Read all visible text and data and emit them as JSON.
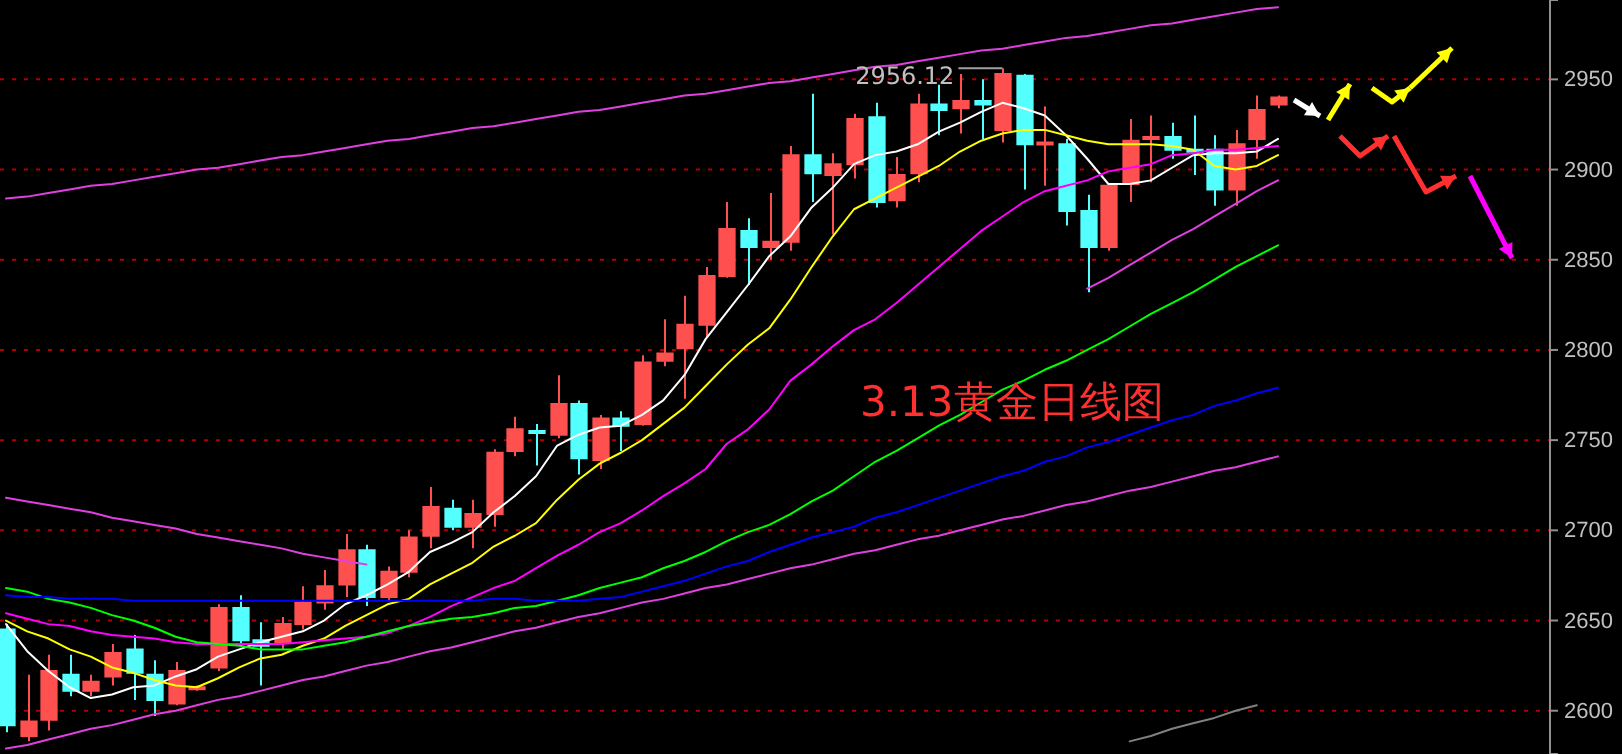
{
  "chart_data": {
    "type": "candlestick",
    "title": "3.13黄金日线图",
    "categories": [
      null,
      null,
      null,
      null,
      null,
      null,
      null,
      null,
      null,
      null,
      null,
      null,
      null,
      null,
      null,
      null,
      null,
      null,
      null,
      null,
      null,
      null,
      null,
      null,
      null,
      null,
      null,
      null,
      null,
      null,
      null,
      null,
      null,
      null,
      null,
      null,
      null,
      null,
      null,
      null,
      null,
      null,
      null,
      null,
      null,
      null,
      null,
      null,
      null,
      null,
      null,
      null,
      null,
      null,
      null,
      null,
      null,
      null,
      null,
      null,
      null
    ],
    "ohlc": [
      [
        2645,
        2648,
        2588,
        2592
      ],
      [
        2586,
        2620,
        2583,
        2594
      ],
      [
        2595,
        2631,
        2589,
        2622
      ],
      [
        2620,
        2631,
        2608,
        2611
      ],
      [
        2611,
        2620,
        2608,
        2616
      ],
      [
        2619,
        2637,
        2614,
        2632
      ],
      [
        2634,
        2642,
        2606,
        2621
      ],
      [
        2620,
        2628,
        2597,
        2606
      ],
      [
        2604,
        2627,
        2603,
        2622
      ],
      [
        2612,
        2614,
        2611,
        2613
      ],
      [
        2624,
        2659,
        2622,
        2657
      ],
      [
        2657,
        2664,
        2636,
        2639
      ],
      [
        2639,
        2649,
        2614,
        2636
      ],
      [
        2638,
        2652,
        2634,
        2648
      ],
      [
        2648,
        2669,
        2645,
        2660
      ],
      [
        2660,
        2678,
        2656,
        2669
      ],
      [
        2670,
        2698,
        2663,
        2689
      ],
      [
        2689,
        2692,
        2658,
        2663
      ],
      [
        2663,
        2680,
        2661,
        2677
      ],
      [
        2677,
        2700,
        2674,
        2696
      ],
      [
        2697,
        2724,
        2690,
        2713
      ],
      [
        2712,
        2717,
        2700,
        2702
      ],
      [
        2702,
        2717,
        2690,
        2709
      ],
      [
        2709,
        2745,
        2702,
        2743
      ],
      [
        2744,
        2763,
        2741,
        2756
      ],
      [
        2755,
        2759,
        2736,
        2754
      ],
      [
        2753,
        2786,
        2751,
        2770
      ],
      [
        2770,
        2772,
        2731,
        2740
      ],
      [
        2739,
        2764,
        2734,
        2762
      ],
      [
        2762,
        2766,
        2744,
        2758
      ],
      [
        2759,
        2797,
        2758,
        2793
      ],
      [
        2794,
        2817,
        2791,
        2798
      ],
      [
        2801,
        2830,
        2773,
        2814
      ],
      [
        2814,
        2846,
        2807,
        2841
      ],
      [
        2841,
        2882,
        2840,
        2867
      ],
      [
        2866,
        2873,
        2836,
        2857
      ],
      [
        2857,
        2887,
        2850,
        2860
      ],
      [
        2860,
        2913,
        2855,
        2908
      ],
      [
        2908,
        2942,
        2882,
        2898
      ],
      [
        2897,
        2909,
        2864,
        2903
      ],
      [
        2903,
        2931,
        2895,
        2928
      ],
      [
        2929,
        2937,
        2879,
        2882
      ],
      [
        2883,
        2907,
        2879,
        2897
      ],
      [
        2898,
        2942,
        2893,
        2936
      ],
      [
        2936,
        2947,
        2919,
        2933
      ],
      [
        2934,
        2953,
        2920,
        2938
      ],
      [
        2938,
        2950,
        2917,
        2936
      ],
      [
        2922,
        2956.12,
        2915,
        2953
      ],
      [
        2952,
        2953,
        2889,
        2914
      ],
      [
        2914,
        2935,
        2891,
        2915
      ],
      [
        2914,
        2917,
        2869,
        2877
      ],
      [
        2877,
        2886,
        2832,
        2857
      ],
      [
        2857,
        2892,
        2855,
        2891
      ],
      [
        2892,
        2928,
        2882,
        2916
      ],
      [
        2917,
        2930,
        2893,
        2918
      ],
      [
        2918,
        2926,
        2906,
        2911
      ],
      [
        2911,
        2930,
        2897,
        2910
      ],
      [
        2911,
        2919,
        2880,
        2889
      ],
      [
        2889,
        2922,
        2880,
        2914
      ],
      [
        2917,
        2941,
        2906,
        2933
      ],
      [
        2936,
        2941,
        2934,
        2940
      ]
    ],
    "colors": [
      "#54ffff",
      "#ff5050",
      "#ff5050",
      "#54ffff",
      "#ff5050",
      "#ff5050",
      "#54ffff",
      "#54ffff",
      "#ff5050",
      "#ff5050",
      "#ff5050",
      "#54ffff",
      "#54ffff",
      "#ff5050",
      "#ff5050",
      "#ff5050",
      "#ff5050",
      "#54ffff",
      "#ff5050",
      "#ff5050",
      "#ff5050",
      "#54ffff",
      "#ff5050",
      "#ff5050",
      "#ff5050",
      "#54ffff",
      "#ff5050",
      "#54ffff",
      "#ff5050",
      "#54ffff",
      "#ff5050",
      "#ff5050",
      "#ff5050",
      "#ff5050",
      "#ff5050",
      "#54ffff",
      "#ff5050",
      "#ff5050",
      "#54ffff",
      "#ff5050",
      "#ff5050",
      "#54ffff",
      "#ff5050",
      "#ff5050",
      "#54ffff",
      "#ff5050",
      "#54ffff",
      "#ff5050",
      "#54ffff",
      "#ff5050",
      "#54ffff",
      "#54ffff",
      "#ff5050",
      "#ff5050",
      "#ff5050",
      "#54ffff",
      "#54ffff",
      "#54ffff",
      "#ff5050",
      "#ff5050",
      "#ff5050"
    ],
    "series": [
      {
        "type": "line",
        "color": "#ffffff",
        "values": [
          2648,
          2633,
          2622,
          2613,
          2607,
          2609,
          2613,
          2614,
          2619,
          2623,
          2630,
          2634,
          2638,
          2641,
          2644,
          2650,
          2659,
          2664,
          2670,
          2677,
          2688,
          2693,
          2699,
          2710,
          2719,
          2730,
          2747,
          2753,
          2757,
          2758,
          2764,
          2772,
          2786,
          2806,
          2821,
          2836,
          2852,
          2863,
          2879,
          2890,
          2903,
          2908,
          2910,
          2914,
          2921,
          2926,
          2932,
          2937,
          2934,
          2930,
          2919,
          2906,
          2892,
          2892,
          2894,
          2901,
          2908,
          2909,
          2909,
          2910,
          2917
        ]
      },
      {
        "type": "line",
        "color": "#ffff00",
        "values": [
          2650,
          2644,
          2640,
          2634,
          2630,
          2624,
          2621,
          2617,
          2614,
          2613,
          2618,
          2624,
          2629,
          2631,
          2636,
          2640,
          2647,
          2653,
          2659,
          2662,
          2670,
          2676,
          2682,
          2691,
          2697,
          2704,
          2717,
          2728,
          2737,
          2743,
          2750,
          2759,
          2768,
          2780,
          2792,
          2803,
          2812,
          2828,
          2846,
          2863,
          2878,
          2884,
          2890,
          2896,
          2902,
          2910,
          2916,
          2920,
          2922,
          2922,
          2919,
          2916,
          2914,
          2914,
          2914,
          2913,
          2911,
          2902,
          2900,
          2902,
          2908
        ]
      },
      {
        "type": "line",
        "color": "#ff00ff",
        "values": [
          2654,
          2651,
          2648,
          2647,
          2644,
          2642,
          2641,
          2640,
          2638,
          2637,
          2637,
          2637,
          2637,
          2637,
          2638,
          2639,
          2640,
          2641,
          2643,
          2647,
          2652,
          2658,
          2663,
          2668,
          2672,
          2679,
          2686,
          2692,
          2699,
          2704,
          2711,
          2719,
          2726,
          2734,
          2748,
          2756,
          2767,
          2783,
          2792,
          2802,
          2811,
          2817,
          2826,
          2836,
          2846,
          2856,
          2866,
          2874,
          2882,
          2888,
          2891,
          2894,
          2899,
          2901,
          2903,
          2908,
          2909,
          2911,
          2911,
          2912,
          2913
        ]
      },
      {
        "type": "line",
        "color": "#00ff00",
        "values": [
          2668,
          2666,
          2662,
          2660,
          2657,
          2653,
          2650,
          2646,
          2641,
          2638,
          2637,
          2636,
          2634,
          2634,
          2634,
          2636,
          2638,
          2641,
          2644,
          2647,
          2649,
          2651,
          2652,
          2654,
          2657,
          2658,
          2661,
          2664,
          2668,
          2671,
          2674,
          2679,
          2683,
          2688,
          2694,
          2699,
          2703,
          2709,
          2716,
          2722,
          2730,
          2738,
          2744,
          2751,
          2758,
          2764,
          2771,
          2778,
          2783,
          2789,
          2794,
          2800,
          2806,
          2813,
          2820,
          2826,
          2832,
          2839,
          2846,
          2852,
          2858
        ]
      },
      {
        "type": "line",
        "color": "#0000ff",
        "values": [
          2664,
          2663,
          2663,
          2662,
          2662,
          2662,
          2661,
          2661,
          2661,
          2661,
          2661,
          2661,
          2661,
          2661,
          2661,
          2661,
          2661,
          2661,
          2661,
          2661,
          2661,
          2661,
          2661,
          2662,
          2662,
          2661,
          2661,
          2661,
          2662,
          2663,
          2666,
          2669,
          2672,
          2676,
          2680,
          2683,
          2688,
          2692,
          2696,
          2699,
          2702,
          2707,
          2710,
          2714,
          2718,
          2722,
          2726,
          2730,
          2733,
          2738,
          2741,
          2746,
          2749,
          2753,
          2757,
          2761,
          2764,
          2769,
          2772,
          2776,
          2779
        ]
      },
      {
        "type": "line",
        "color": "#e040e0",
        "values": [
          2884,
          2885,
          2887,
          2889,
          2891,
          2892,
          2894,
          2896,
          2898,
          2900,
          2901,
          2903,
          2905,
          2907,
          2908,
          2910,
          2912,
          2914,
          2916,
          2917,
          2919,
          2921,
          2923,
          2924,
          2926,
          2928,
          2930,
          2932,
          2933,
          2935,
          2937,
          2939,
          2941,
          2942,
          2944,
          2946,
          2948,
          2949,
          2951,
          2953,
          2955,
          2957,
          2958,
          2960,
          2962,
          2964,
          2966,
          2967,
          2969,
          2971,
          2973,
          2974,
          2976,
          2978,
          2980,
          2981,
          2983,
          2985,
          2987,
          2989,
          2990
        ]
      },
      {
        "type": "line",
        "color": "#e040e0",
        "values": [
          2718,
          2716,
          2714,
          2712,
          2710,
          2707,
          2705,
          2703,
          2701,
          2698,
          2696,
          2694,
          2692,
          2690,
          2687,
          2685,
          2683,
          2681,
          null,
          null,
          null,
          null,
          null,
          null,
          null,
          null,
          null,
          null,
          null,
          null,
          null,
          null,
          null,
          null,
          null,
          null,
          null,
          null,
          null,
          null,
          null,
          null,
          null,
          null,
          null,
          null,
          null,
          null,
          null,
          null,
          null,
          null,
          null,
          null,
          null,
          null,
          null,
          null,
          null,
          null,
          null
        ]
      },
      {
        "type": "line",
        "color": "#e040e0",
        "values": [
          2579,
          2581,
          2584,
          2587,
          2590,
          2592,
          2595,
          2598,
          2600,
          2603,
          2606,
          2608,
          2611,
          2614,
          2617,
          2619,
          2622,
          2625,
          2627,
          2630,
          2633,
          2635,
          2638,
          2641,
          2644,
          2646,
          2649,
          2652,
          2654,
          2657,
          2660,
          2662,
          2665,
          2668,
          2670,
          2673,
          2676,
          2679,
          2681,
          2684,
          2687,
          2689,
          2692,
          2695,
          2697,
          2700,
          2703,
          2706,
          2708,
          2711,
          2714,
          2716,
          2719,
          2722,
          2724,
          2727,
          2730,
          2733,
          2735,
          2738,
          2741
        ]
      },
      {
        "type": "line",
        "color": "#e040e0",
        "values": [
          null,
          null,
          null,
          null,
          null,
          null,
          null,
          null,
          null,
          null,
          null,
          null,
          null,
          null,
          null,
          null,
          null,
          null,
          null,
          null,
          null,
          null,
          null,
          null,
          null,
          null,
          null,
          null,
          null,
          null,
          null,
          null,
          null,
          null,
          null,
          null,
          null,
          null,
          null,
          null,
          null,
          null,
          null,
          null,
          null,
          null,
          null,
          null,
          null,
          null,
          null,
          2834,
          2840,
          2847,
          2854,
          2861,
          2867,
          2874,
          2881,
          2888,
          2894
        ]
      },
      {
        "type": "line",
        "color": "#808080",
        "values": [
          null,
          null,
          null,
          null,
          null,
          null,
          null,
          null,
          null,
          null,
          null,
          null,
          null,
          null,
          null,
          null,
          null,
          null,
          null,
          null,
          null,
          null,
          null,
          null,
          null,
          null,
          null,
          null,
          null,
          null,
          null,
          null,
          null,
          null,
          null,
          null,
          null,
          null,
          null,
          null,
          null,
          null,
          null,
          null,
          null,
          null,
          null,
          null,
          null,
          null,
          null,
          null,
          null,
          2583,
          2586,
          2590,
          2593,
          2596,
          2600,
          2603,
          null
        ]
      }
    ],
    "ylim": [
      2576,
      2994
    ],
    "yticks": [
      2600,
      2650,
      2700,
      2750,
      2800,
      2850,
      2900,
      2950
    ],
    "grid": "y",
    "tick_labels": "y",
    "annotations": [
      {
        "text": "2956.12",
        "y": 2956.12
      }
    ]
  }
}
